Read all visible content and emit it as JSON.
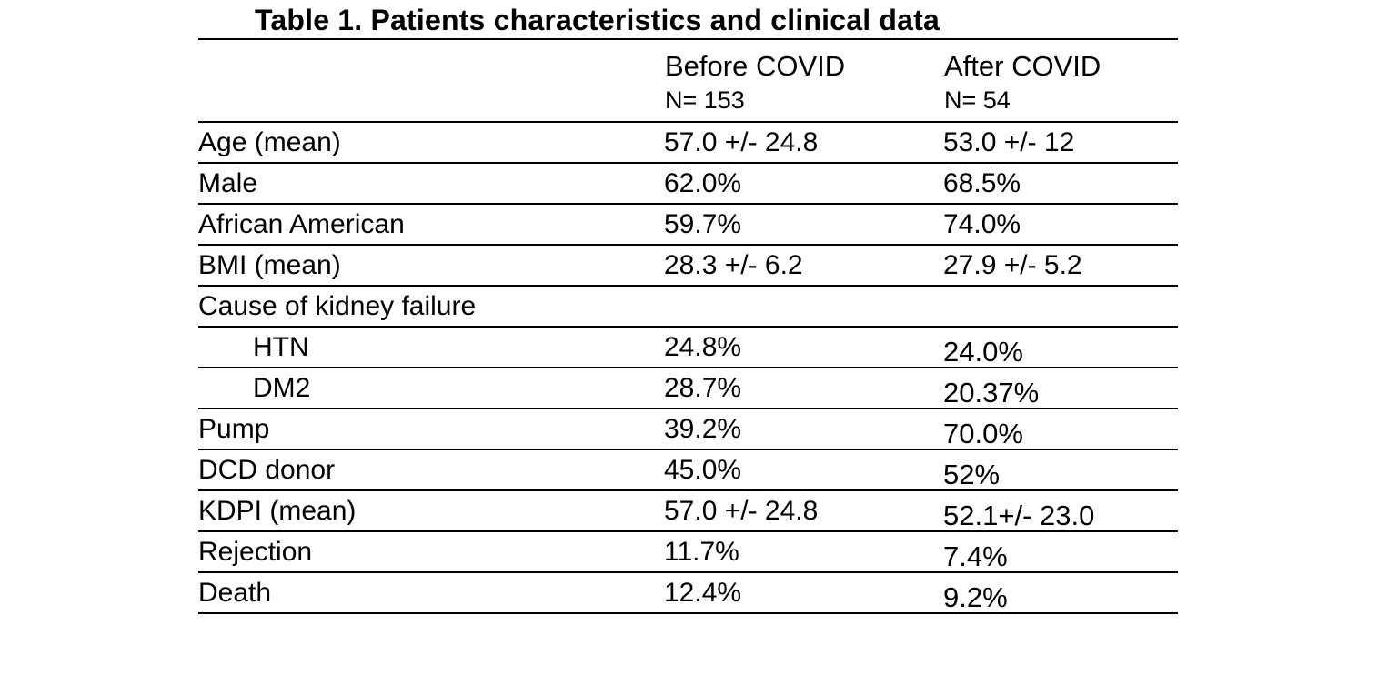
{
  "page": {
    "background": "#ffffff",
    "text_color": "#000000"
  },
  "table": {
    "title": "Table 1. Patients characteristics and clinical data",
    "columns": [
      {
        "label": "Before COVID",
        "sub": "N= 153"
      },
      {
        "label": "After COVID",
        "sub": "N= 54"
      }
    ],
    "rows": [
      {
        "label": "Age (mean)",
        "before": "57.0 +/- 24.8",
        "after": "53.0 +/- 12"
      },
      {
        "label": "Male",
        "before": "62.0%",
        "after": "68.5%"
      },
      {
        "label": "African American",
        "before": "59.7%",
        "after": "74.0%"
      },
      {
        "label": "BMI (mean)",
        "before": "28.3 +/- 6.2",
        "after": "27.9 +/- 5.2"
      },
      {
        "label": "Cause of kidney failure",
        "before": "",
        "after": ""
      },
      {
        "label": "HTN",
        "before": "24.8%",
        "after": "24.0%"
      },
      {
        "label": "DM2",
        "before": "28.7%",
        "after": "20.37%"
      },
      {
        "label": "Pump",
        "before": "39.2%",
        "after": "70.0%"
      },
      {
        "label": "DCD donor",
        "before": "45.0%",
        "after": "52%"
      },
      {
        "label": "KDPI (mean)",
        "before": "57.0 +/- 24.8",
        "after": "52.1+/- 23.0"
      },
      {
        "label": "Rejection",
        "before": "11.7%",
        "after": "7.4%"
      },
      {
        "label": "Death",
        "before": "12.4%",
        "after": "9.2%"
      }
    ]
  }
}
